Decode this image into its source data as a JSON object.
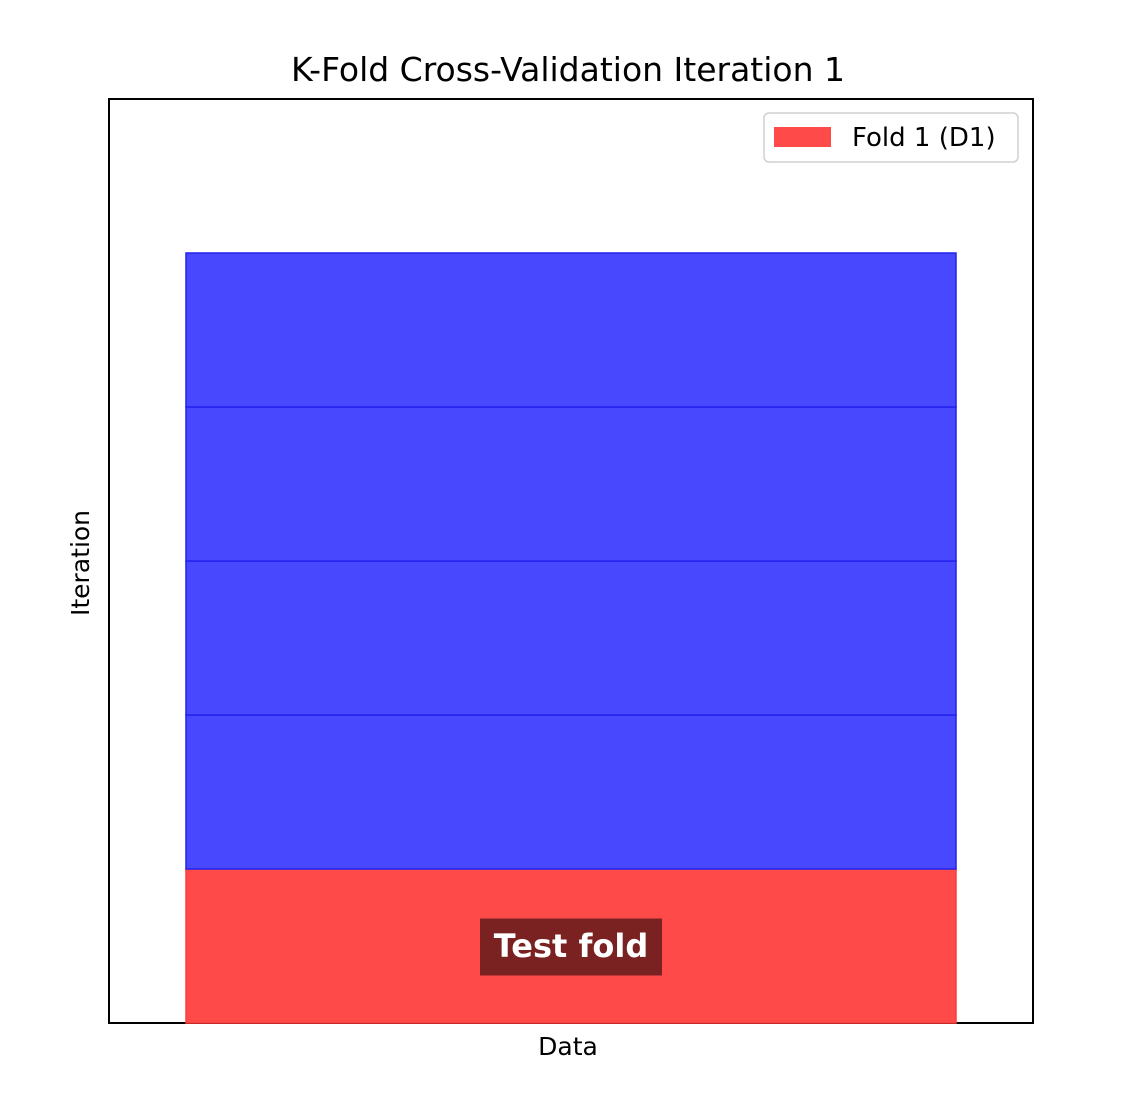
{
  "chart_data": {
    "type": "bar",
    "orientation": "horizontal-stacked-folds",
    "title": "K-Fold Cross-Validation Iteration 1",
    "xlabel": "Data",
    "ylabel": "Iteration",
    "xticks": false,
    "yticks": false,
    "grid": false,
    "xlim": [
      -0.1,
      1.1
    ],
    "ylim": [
      -0.5,
      5.5
    ],
    "folds": [
      {
        "index": 1,
        "role": "test",
        "start": 0,
        "width": 1,
        "color": "#ff4a4a"
      },
      {
        "index": 2,
        "role": "train",
        "start": 0,
        "width": 1,
        "color": "#4848ff"
      },
      {
        "index": 3,
        "role": "train",
        "start": 0,
        "width": 1,
        "color": "#4848ff"
      },
      {
        "index": 4,
        "role": "train",
        "start": 0,
        "width": 1,
        "color": "#4848ff"
      },
      {
        "index": 5,
        "role": "train",
        "start": 0,
        "width": 1,
        "color": "#4848ff"
      }
    ],
    "legend": {
      "placement": "top-right",
      "entries": [
        {
          "label": "Fold 1 (D1)",
          "color": "#ff4a4a"
        }
      ]
    },
    "annotations": [
      {
        "text": "Test fold",
        "fold_index": 1,
        "box_color": "#7a2222",
        "text_color": "#ffffff"
      }
    ],
    "colors": {
      "train": "#4848ff",
      "train_edge": "#2222ee",
      "test": "#ff4a4a",
      "test_edge": "#ff3b3b"
    }
  }
}
